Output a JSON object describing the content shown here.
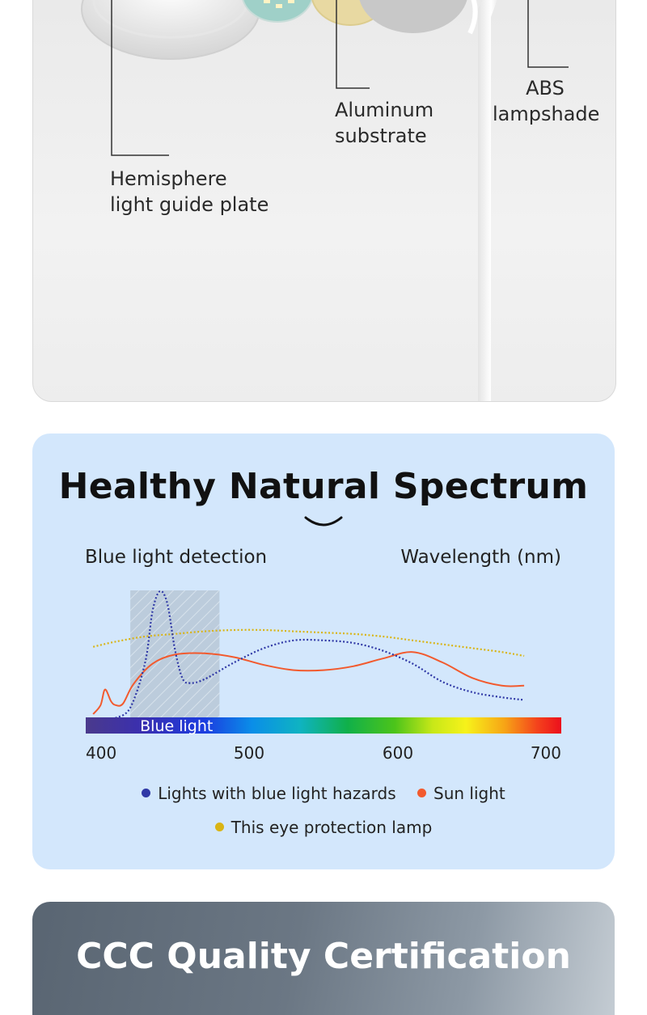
{
  "product_callouts": {
    "hemisphere": [
      "Hemisphere",
      "light guide plate"
    ],
    "aluminum": [
      "Aluminum",
      "substrate"
    ],
    "abs": [
      "ABS",
      "lampshade"
    ]
  },
  "spectrum_section": {
    "title": "Healthy Natural Spectrum",
    "left_caption": "Blue light detection",
    "right_caption": "Wavelength (nm)",
    "band_label": "Blue light",
    "legend": [
      {
        "label": "Lights with blue light hazards",
        "color": "#2f38a6"
      },
      {
        "label": "Sun light",
        "color": "#f25a2e"
      },
      {
        "label": "This eye protection lamp",
        "color": "#d9b414"
      }
    ]
  },
  "chart_data": {
    "type": "line",
    "title": "Blue light detection",
    "xlabel": "Wavelength (nm)",
    "ylabel": "",
    "xlim": [
      400,
      720
    ],
    "x_ticks": [
      400,
      500,
      600,
      700
    ],
    "highlight_band": {
      "label": "Blue light",
      "x_range": [
        430,
        490
      ]
    },
    "series": [
      {
        "name": "Lights with blue light hazards",
        "color": "#2f38a6",
        "style": "dotted",
        "x": [
          420,
          430,
          440,
          445,
          450,
          455,
          460,
          465,
          470,
          480,
          500,
          520,
          540,
          560,
          580,
          600,
          620,
          640,
          660,
          680,
          695
        ],
        "y": [
          0.02,
          0.1,
          0.45,
          0.85,
          1.0,
          0.9,
          0.55,
          0.33,
          0.29,
          0.32,
          0.45,
          0.56,
          0.62,
          0.62,
          0.6,
          0.54,
          0.44,
          0.3,
          0.22,
          0.18,
          0.16
        ]
      },
      {
        "name": "Sun light",
        "color": "#f25a2e",
        "style": "solid",
        "x": [
          405,
          410,
          413,
          417,
          420,
          425,
          432,
          445,
          460,
          480,
          500,
          520,
          540,
          560,
          580,
          600,
          620,
          640,
          660,
          680,
          695
        ],
        "y": [
          0.05,
          0.12,
          0.24,
          0.15,
          0.12,
          0.13,
          0.28,
          0.44,
          0.51,
          0.52,
          0.49,
          0.43,
          0.39,
          0.39,
          0.42,
          0.48,
          0.53,
          0.45,
          0.33,
          0.27,
          0.27
        ]
      },
      {
        "name": "This eye protection lamp",
        "color": "#d9b414",
        "style": "dotted",
        "x": [
          405,
          420,
          440,
          460,
          480,
          500,
          520,
          540,
          560,
          580,
          600,
          620,
          640,
          660,
          680,
          695
        ],
        "y": [
          0.57,
          0.61,
          0.65,
          0.67,
          0.69,
          0.7,
          0.7,
          0.69,
          0.68,
          0.67,
          0.65,
          0.62,
          0.59,
          0.56,
          0.53,
          0.5
        ]
      }
    ]
  },
  "certification_section": {
    "title": "CCC Quality Certification"
  }
}
